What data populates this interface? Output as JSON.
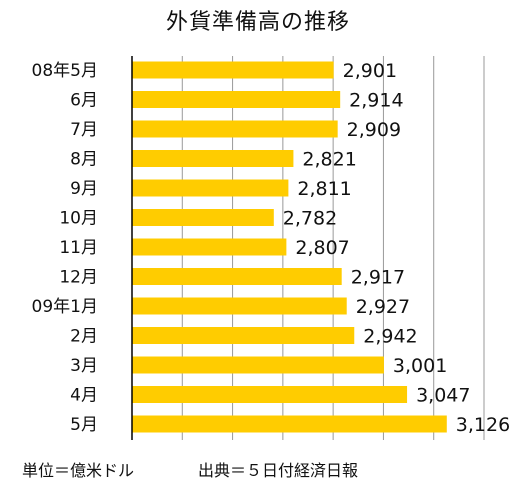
{
  "chart_data": {
    "type": "bar",
    "orientation": "horizontal",
    "title": "外貨準備高の推移",
    "categories": [
      "08年5月",
      "6月",
      "7月",
      "8月",
      "9月",
      "10月",
      "11月",
      "12月",
      "09年1月",
      "2月",
      "3月",
      "4月",
      "5月"
    ],
    "values": [
      2901,
      2914,
      2909,
      2821,
      2811,
      2782,
      2807,
      2917,
      2927,
      2942,
      3001,
      3047,
      3126
    ],
    "value_labels": [
      "2,901",
      "2,914",
      "2,909",
      "2,821",
      "2,811",
      "2,782",
      "2,807",
      "2,917",
      "2,927",
      "2,942",
      "3,001",
      "3,047",
      "3,126"
    ],
    "xlim": [
      2500,
      3200
    ],
    "grid": true,
    "bar_color": "#FFCC00",
    "grid_color": "#999999"
  },
  "footer": {
    "unit": "単位＝億米ドル",
    "source": "出典＝５日付経済日報"
  }
}
